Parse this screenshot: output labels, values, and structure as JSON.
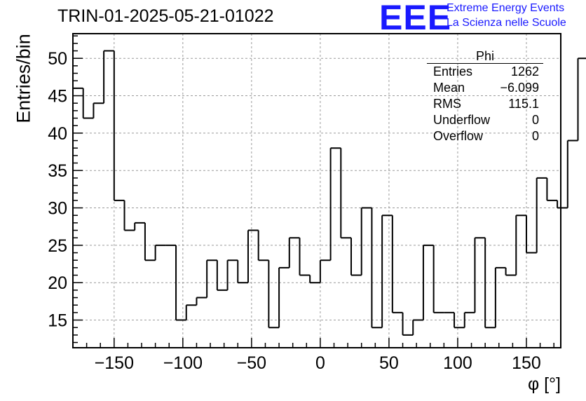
{
  "header": {
    "title": "TRIN-01-2025-05-21-01022",
    "logo_text": "EEE",
    "logo_line1": "Extreme Energy Events",
    "logo_line2": "La Scienza nelle Scuole"
  },
  "stats_box": {
    "title": "Phi",
    "rows": [
      {
        "label": "Entries",
        "value": "1262"
      },
      {
        "label": "Mean",
        "value": "−6.099"
      },
      {
        "label": "RMS",
        "value": "115.1"
      },
      {
        "label": "Underflow",
        "value": "0"
      },
      {
        "label": "Overflow",
        "value": "0"
      }
    ]
  },
  "chart_data": {
    "type": "bar",
    "histogram": true,
    "title": "TRIN-01-2025-05-21-01022",
    "xlabel": "φ [°]",
    "ylabel": "Entries/bin",
    "xlim": [
      -180,
      175
    ],
    "ylim": [
      11.3,
      53.3
    ],
    "grid": true,
    "bin_width": 7.5,
    "bin_start": -180,
    "values": [
      46,
      42,
      44,
      51,
      31,
      27,
      28,
      23,
      25,
      25,
      15,
      17,
      18,
      23,
      19,
      23,
      20,
      27,
      23,
      14,
      22,
      26,
      21,
      20,
      23,
      38,
      26,
      21,
      30,
      14,
      29,
      16,
      13,
      15,
      25,
      16,
      16,
      14,
      16,
      26,
      14,
      22,
      21,
      29,
      24,
      34,
      31,
      30,
      39,
      50
    ],
    "x_ticks": [
      -150,
      -100,
      -50,
      0,
      50,
      100,
      150
    ],
    "x_tick_labels": [
      "−150",
      "−100",
      "−50",
      "0",
      "50",
      "100",
      "150"
    ],
    "y_ticks": [
      15,
      20,
      25,
      30,
      35,
      40,
      45,
      50
    ],
    "y_tick_labels": [
      "15",
      "20",
      "25",
      "30",
      "35",
      "40",
      "45",
      "50"
    ]
  }
}
